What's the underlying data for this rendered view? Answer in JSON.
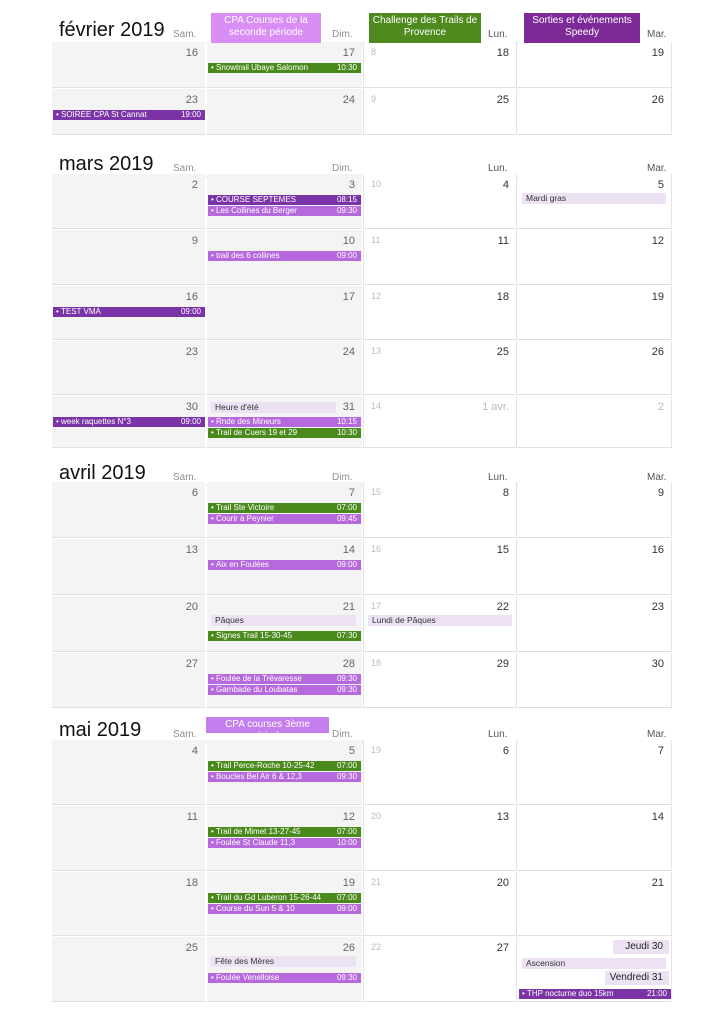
{
  "calendar_headers": [
    {
      "label": "CPA Courses de la seconde période",
      "color": "#d98ef6"
    },
    {
      "label": "Challenge  des Trails de Provence",
      "color": "#4e8a1e"
    },
    {
      "label": "Sorties et événements Speedy",
      "color": "#7d2a98"
    },
    {
      "label": "CPA courses 3ème période",
      "color": "#c57eee"
    }
  ],
  "day_names": {
    "sat": "Sam.",
    "sun": "Dim.",
    "mon": "Lun.",
    "tue": "Mar."
  },
  "months": [
    {
      "title": "février 2019",
      "weeks": [
        {
          "days": [
            "16",
            "17",
            "18",
            "19"
          ],
          "week_number": "8",
          "events": [
            {
              "col": 1,
              "label": "Snowtrail Ubaye Salomon",
              "time": "10:30",
              "cal": "green"
            }
          ]
        },
        {
          "days": [
            "23",
            "24",
            "25",
            "26"
          ],
          "week_number": "9",
          "events": [
            {
              "col": 0,
              "label": "SOIREE CPA St Cannat",
              "time": "19:00",
              "cal": "purple"
            }
          ]
        }
      ]
    },
    {
      "title": "mars 2019",
      "weeks": [
        {
          "days": [
            "2",
            "3",
            "4",
            "5"
          ],
          "week_number": "10",
          "events": [
            {
              "col": 1,
              "label": "COURSE SEPTEMES",
              "time": "08:15",
              "cal": "purple"
            },
            {
              "col": 1,
              "label": "Les Collines du Berger",
              "time": "09:30",
              "cal": "lilac"
            }
          ],
          "holidays": [
            {
              "col": 3,
              "label": "Mardi gras"
            }
          ]
        },
        {
          "days": [
            "9",
            "10",
            "11",
            "12"
          ],
          "week_number": "11",
          "events": [
            {
              "col": 1,
              "label": "trail des 6 collines",
              "time": "09:00",
              "cal": "lilac"
            }
          ]
        },
        {
          "days": [
            "16",
            "17",
            "18",
            "19"
          ],
          "week_number": "12",
          "events": [
            {
              "col": 0,
              "label": "TEST VMA",
              "time": "09:00",
              "cal": "purple"
            }
          ]
        },
        {
          "days": [
            "23",
            "24",
            "25",
            "26"
          ],
          "week_number": "13",
          "events": []
        },
        {
          "days": [
            "30",
            "31",
            "1 avr.",
            "2"
          ],
          "week_number": "14",
          "events": [
            {
              "col": 0,
              "label": "week raquettes N°3",
              "time": "09:00",
              "cal": "purple"
            },
            {
              "col": 1,
              "label": "Rnde des Mineurs",
              "time": "10:15",
              "cal": "lilac"
            },
            {
              "col": 1,
              "label": "Trail de Cuers 19 et 29",
              "time": "10:30",
              "cal": "green"
            }
          ],
          "holidays": [
            {
              "col": 1,
              "label": "Heure d'été"
            }
          ]
        }
      ]
    },
    {
      "title": "avril 2019",
      "weeks": [
        {
          "days": [
            "6",
            "7",
            "8",
            "9"
          ],
          "week_number": "15",
          "events": [
            {
              "col": 1,
              "label": "Trail Ste Victoire",
              "time": "07:00",
              "cal": "green"
            },
            {
              "col": 1,
              "label": "Courir à Peynier",
              "time": "09:45",
              "cal": "lilac"
            }
          ]
        },
        {
          "days": [
            "13",
            "14",
            "15",
            "16"
          ],
          "week_number": "16",
          "events": [
            {
              "col": 1,
              "label": "Aix en Foulées",
              "time": "09:00",
              "cal": "lilac"
            }
          ]
        },
        {
          "days": [
            "20",
            "21",
            "22",
            "23"
          ],
          "week_number": "17",
          "events": [
            {
              "col": 1,
              "label": "Signes Trail 15-30-45",
              "time": "07:30",
              "cal": "green"
            }
          ],
          "holidays": [
            {
              "col": 1,
              "label": "Pâques"
            },
            {
              "col": 2,
              "label": "Lundi de Pâques"
            }
          ]
        },
        {
          "days": [
            "27",
            "28",
            "29",
            "30"
          ],
          "week_number": "18",
          "events": [
            {
              "col": 1,
              "label": "Foulée de la Trévaresse",
              "time": "09:30",
              "cal": "lilac"
            },
            {
              "col": 1,
              "label": "Gambade du Loubatas",
              "time": "09:30",
              "cal": "lilac"
            }
          ]
        }
      ]
    },
    {
      "title": "mai 2019",
      "weeks": [
        {
          "days": [
            "4",
            "5",
            "6",
            "7"
          ],
          "week_number": "19",
          "events": [
            {
              "col": 1,
              "label": "Trail Perce-Roche 10-25-42",
              "time": "07:00",
              "cal": "green"
            },
            {
              "col": 1,
              "label": "Boucles Bel Air 6 & 12,3",
              "time": "09:30",
              "cal": "lilac"
            }
          ]
        },
        {
          "days": [
            "11",
            "12",
            "13",
            "14"
          ],
          "week_number": "20",
          "events": [
            {
              "col": 1,
              "label": "Trail de Mimet 13-27-45",
              "time": "07:00",
              "cal": "green"
            },
            {
              "col": 1,
              "label": "Foulée St Claude 11,3",
              "time": "10:00",
              "cal": "lilac"
            }
          ]
        },
        {
          "days": [
            "18",
            "19",
            "20",
            "21"
          ],
          "week_number": "21",
          "events": [
            {
              "col": 1,
              "label": "Trail du Gd Luberon 15-26-44",
              "time": "07:00",
              "cal": "green"
            },
            {
              "col": 1,
              "label": "Course du Sun 5 & 10",
              "time": "09:00",
              "cal": "lilac"
            }
          ]
        },
        {
          "days": [
            "25",
            "26",
            "27",
            ""
          ],
          "week_number": "22",
          "events": [
            {
              "col": 1,
              "label": "Foulée Venelloise",
              "time": "09:30",
              "cal": "lilac"
            },
            {
              "col": 3,
              "label": "THP nocturne duo 15km",
              "time": "21:00",
              "cal": "purple"
            }
          ],
          "holidays": [
            {
              "col": 1,
              "label": "Fête des Mères"
            },
            {
              "col": 3,
              "label": "Ascension"
            }
          ],
          "side_dates": [
            "Jeudi 30",
            "Vendredi 31"
          ]
        }
      ]
    }
  ]
}
